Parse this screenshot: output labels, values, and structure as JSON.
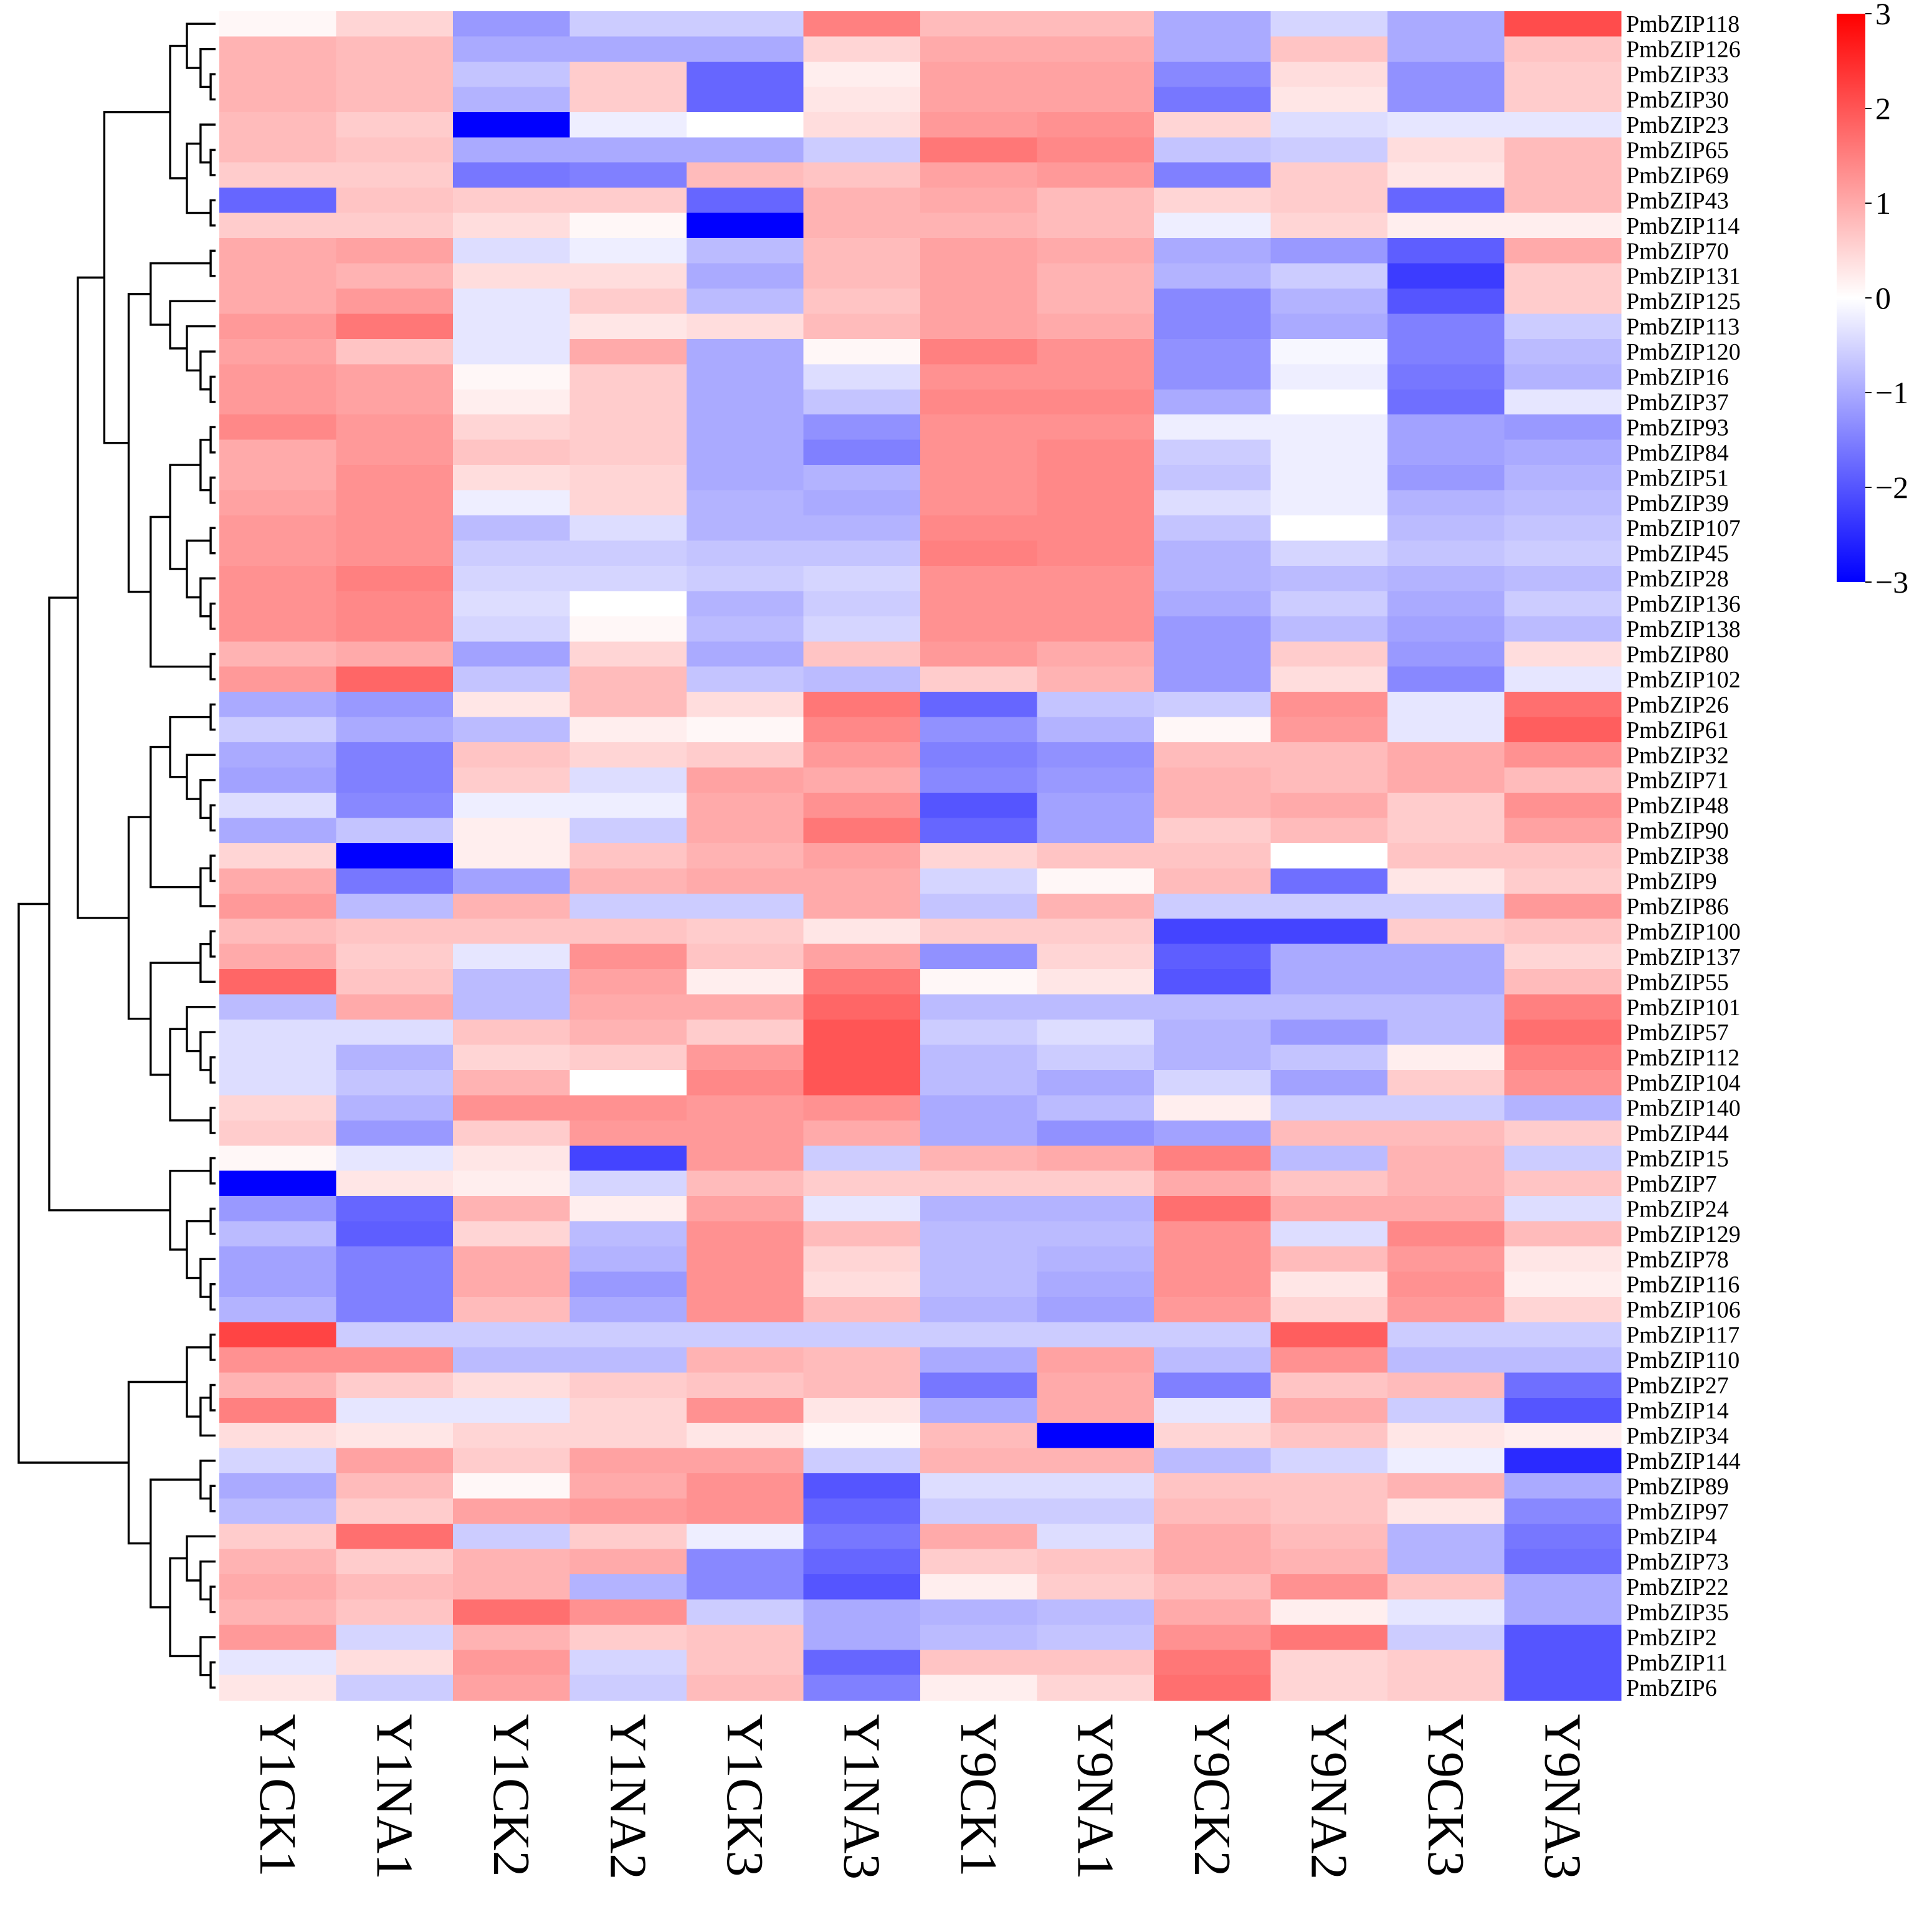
{
  "chart_data": {
    "type": "heatmap",
    "title": "",
    "columns": [
      "Y1CK1",
      "Y1NA1",
      "Y1CK2",
      "Y1NA2",
      "Y1CK3",
      "Y1NA3",
      "Y9CK1",
      "Y9NA1",
      "Y9CK2",
      "Y9NA2",
      "Y9CK3",
      "Y9NA3"
    ],
    "rows": [
      "PmbZIP118",
      "PmbZIP126",
      "PmbZIP33",
      "PmbZIP30",
      "PmbZIP23",
      "PmbZIP65",
      "PmbZIP69",
      "PmbZIP43",
      "PmbZIP114",
      "PmbZIP70",
      "PmbZIP131",
      "PmbZIP125",
      "PmbZIP113",
      "PmbZIP120",
      "PmbZIP16",
      "PmbZIP37",
      "PmbZIP93",
      "PmbZIP84",
      "PmbZIP51",
      "PmbZIP39",
      "PmbZIP107",
      "PmbZIP45",
      "PmbZIP28",
      "PmbZIP136",
      "PmbZIP138",
      "PmbZIP80",
      "PmbZIP102",
      "PmbZIP26",
      "PmbZIP61",
      "PmbZIP32",
      "PmbZIP71",
      "PmbZIP48",
      "PmbZIP90",
      "PmbZIP38",
      "PmbZIP9",
      "PmbZIP86",
      "PmbZIP100",
      "PmbZIP137",
      "PmbZIP55",
      "PmbZIP101",
      "PmbZIP57",
      "PmbZIP112",
      "PmbZIP104",
      "PmbZIP140",
      "PmbZIP44",
      "PmbZIP15",
      "PmbZIP7",
      "PmbZIP24",
      "PmbZIP129",
      "PmbZIP78",
      "PmbZIP116",
      "PmbZIP106",
      "PmbZIP117",
      "PmbZIP110",
      "PmbZIP27",
      "PmbZIP14",
      "PmbZIP34",
      "PmbZIP144",
      "PmbZIP89",
      "PmbZIP97",
      "PmbZIP4",
      "PmbZIP73",
      "PmbZIP22",
      "PmbZIP35",
      "PmbZIP2",
      "PmbZIP11",
      "PmbZIP6"
    ],
    "values": [
      [
        0.1,
        0.5,
        -1.2,
        -0.6,
        -0.6,
        1.5,
        0.8,
        0.8,
        -1.0,
        -0.5,
        -1.0,
        2.1
      ],
      [
        0.9,
        0.8,
        -1.0,
        -1.0,
        -1.0,
        0.5,
        1.0,
        1.0,
        -1.0,
        0.7,
        -1.0,
        0.7
      ],
      [
        0.9,
        0.8,
        -0.7,
        0.6,
        -1.8,
        0.2,
        1.1,
        1.1,
        -1.4,
        0.4,
        -1.3,
        0.6
      ],
      [
        0.9,
        0.8,
        -0.9,
        0.6,
        -1.8,
        0.3,
        1.1,
        1.1,
        -1.6,
        0.3,
        -1.3,
        0.6
      ],
      [
        0.8,
        0.6,
        -3.0,
        -0.2,
        0.0,
        0.4,
        1.2,
        1.3,
        0.5,
        -0.4,
        -0.3,
        -0.3
      ],
      [
        0.8,
        0.7,
        -1.0,
        -1.0,
        -1.0,
        -0.6,
        1.6,
        1.4,
        -0.7,
        -0.6,
        0.4,
        0.8
      ],
      [
        0.6,
        0.6,
        -1.6,
        -1.5,
        0.8,
        0.7,
        1.1,
        1.2,
        -1.5,
        0.6,
        0.3,
        0.8
      ],
      [
        -1.8,
        0.7,
        0.6,
        0.6,
        -1.8,
        0.9,
        1.0,
        0.8,
        0.5,
        0.6,
        -1.8,
        0.8
      ],
      [
        0.6,
        0.6,
        0.4,
        0.1,
        -3.0,
        0.9,
        0.9,
        0.8,
        -0.2,
        0.5,
        0.2,
        0.2
      ],
      [
        1.0,
        1.1,
        -0.4,
        -0.2,
        -0.8,
        0.8,
        1.1,
        1.0,
        -1.0,
        -1.2,
        -1.9,
        1.0
      ],
      [
        1.0,
        0.9,
        0.4,
        0.4,
        -1.0,
        0.8,
        1.1,
        0.9,
        -0.9,
        -0.6,
        -2.3,
        0.6
      ],
      [
        1.0,
        1.2,
        -0.3,
        0.6,
        -0.8,
        0.7,
        1.1,
        0.9,
        -1.4,
        -0.9,
        -2.0,
        0.6
      ],
      [
        1.2,
        1.6,
        -0.3,
        0.3,
        0.4,
        0.8,
        1.1,
        1.0,
        -1.4,
        -1.0,
        -1.5,
        -0.6
      ],
      [
        1.1,
        0.7,
        -0.3,
        1.0,
        -1.0,
        0.1,
        1.5,
        1.3,
        -1.3,
        -0.1,
        -1.5,
        -0.8
      ],
      [
        1.2,
        1.1,
        0.1,
        0.6,
        -1.0,
        -0.4,
        1.3,
        1.3,
        -1.3,
        -0.2,
        -1.6,
        -0.9
      ],
      [
        1.2,
        1.1,
        0.2,
        0.6,
        -1.0,
        -0.7,
        1.4,
        1.4,
        -1.0,
        0.0,
        -1.7,
        -0.3
      ],
      [
        1.4,
        1.2,
        0.5,
        0.6,
        -1.0,
        -1.3,
        1.3,
        1.3,
        -0.2,
        -0.2,
        -1.1,
        -1.2
      ],
      [
        1.0,
        1.2,
        0.7,
        0.6,
        -1.0,
        -1.5,
        1.3,
        1.4,
        -0.6,
        -0.2,
        -1.1,
        -1.0
      ],
      [
        1.0,
        1.3,
        0.4,
        0.5,
        -1.0,
        -0.9,
        1.3,
        1.4,
        -0.7,
        -0.2,
        -1.2,
        -0.9
      ],
      [
        1.1,
        1.3,
        -0.2,
        0.5,
        -0.9,
        -1.0,
        1.3,
        1.4,
        -0.4,
        -0.2,
        -0.9,
        -0.8
      ],
      [
        1.2,
        1.3,
        -0.8,
        -0.4,
        -0.9,
        -0.9,
        1.4,
        1.4,
        -0.7,
        0.0,
        -0.8,
        -0.7
      ],
      [
        1.2,
        1.3,
        -0.6,
        -0.6,
        -0.7,
        -0.7,
        1.5,
        1.4,
        -0.9,
        -0.5,
        -0.7,
        -0.6
      ],
      [
        1.3,
        1.5,
        -0.5,
        -0.5,
        -0.6,
        -0.5,
        1.3,
        1.3,
        -0.9,
        -0.8,
        -0.9,
        -0.8
      ],
      [
        1.3,
        1.4,
        -0.4,
        0.0,
        -0.9,
        -0.6,
        1.3,
        1.3,
        -1.0,
        -0.6,
        -1.0,
        -0.6
      ],
      [
        1.3,
        1.4,
        -0.5,
        0.1,
        -0.8,
        -0.5,
        1.3,
        1.3,
        -1.2,
        -0.8,
        -1.1,
        -0.8
      ],
      [
        0.9,
        1.0,
        -1.1,
        0.5,
        -1.0,
        0.7,
        1.2,
        1.0,
        -1.2,
        0.6,
        -1.2,
        0.4
      ],
      [
        1.2,
        1.8,
        -0.7,
        0.8,
        -0.7,
        -0.8,
        0.6,
        0.9,
        -1.2,
        0.4,
        -1.4,
        -0.3
      ],
      [
        -1.0,
        -1.2,
        0.3,
        0.8,
        0.4,
        1.6,
        -1.8,
        -0.7,
        -0.6,
        1.3,
        -0.3,
        1.7
      ],
      [
        -0.6,
        -1.0,
        -0.8,
        0.2,
        0.1,
        1.4,
        -1.3,
        -0.9,
        0.1,
        1.2,
        -0.3,
        1.9
      ],
      [
        -1.0,
        -1.5,
        0.7,
        0.5,
        0.6,
        1.2,
        -1.5,
        -1.3,
        0.8,
        0.8,
        1.0,
        1.3
      ],
      [
        -1.1,
        -1.5,
        0.6,
        -0.4,
        1.1,
        1.0,
        -1.4,
        -1.2,
        0.9,
        0.8,
        1.0,
        0.8
      ],
      [
        -0.4,
        -1.4,
        -0.2,
        -0.2,
        1.0,
        1.3,
        -2.0,
        -1.1,
        0.9,
        1.0,
        0.6,
        1.3
      ],
      [
        -1.0,
        -0.7,
        0.2,
        -0.6,
        1.0,
        1.6,
        -1.8,
        -1.1,
        0.6,
        0.8,
        0.6,
        1.1
      ],
      [
        0.5,
        -3.0,
        0.2,
        0.7,
        0.9,
        1.1,
        0.5,
        0.7,
        0.7,
        0.0,
        0.7,
        0.7
      ],
      [
        1.0,
        -1.6,
        -1.1,
        0.9,
        1.0,
        1.0,
        -0.5,
        0.1,
        0.8,
        -1.7,
        0.3,
        0.6
      ],
      [
        1.2,
        -0.8,
        0.9,
        -0.6,
        -0.6,
        1.0,
        -0.7,
        0.9,
        -0.6,
        -0.6,
        -0.6,
        1.2
      ],
      [
        0.8,
        0.7,
        0.7,
        0.7,
        0.6,
        0.3,
        0.6,
        0.6,
        -2.2,
        -2.2,
        0.6,
        0.7
      ],
      [
        1.0,
        0.6,
        -0.3,
        1.3,
        0.7,
        1.1,
        -1.3,
        0.5,
        -1.9,
        -1.0,
        -1.0,
        0.5
      ],
      [
        1.8,
        0.7,
        -0.8,
        1.1,
        0.2,
        1.6,
        0.1,
        0.3,
        -2.0,
        -1.0,
        -1.0,
        0.8
      ],
      [
        -0.8,
        1.0,
        -0.8,
        1.0,
        1.0,
        1.8,
        -0.8,
        -0.8,
        -0.8,
        -0.8,
        -0.8,
        1.5
      ],
      [
        -0.4,
        -0.4,
        0.7,
        0.9,
        0.6,
        2.0,
        -0.6,
        -0.4,
        -0.9,
        -1.2,
        -0.8,
        1.7
      ],
      [
        -0.4,
        -0.9,
        0.5,
        0.6,
        1.2,
        2.0,
        -0.8,
        -0.6,
        -0.9,
        -0.7,
        0.2,
        1.5
      ],
      [
        -0.4,
        -0.7,
        0.9,
        0.0,
        1.4,
        2.0,
        -0.8,
        -1.0,
        -0.5,
        -1.1,
        0.6,
        1.3
      ],
      [
        0.5,
        -0.9,
        1.3,
        1.3,
        1.2,
        1.3,
        -1.0,
        -0.8,
        0.2,
        -0.6,
        -0.6,
        -0.9
      ],
      [
        0.6,
        -1.2,
        0.6,
        1.2,
        1.2,
        1.0,
        -1.0,
        -1.3,
        -1.1,
        0.8,
        0.8,
        0.6
      ],
      [
        0.1,
        -0.3,
        0.3,
        -2.2,
        1.2,
        -0.6,
        0.9,
        1.0,
        1.5,
        -0.8,
        0.9,
        -0.6
      ],
      [
        -3.0,
        0.3,
        0.2,
        -0.5,
        0.8,
        0.6,
        0.6,
        0.6,
        1.0,
        0.7,
        0.9,
        0.7
      ],
      [
        -1.2,
        -1.8,
        0.9,
        0.2,
        1.1,
        -0.3,
        -0.9,
        -0.9,
        1.7,
        1.0,
        1.0,
        -0.4
      ],
      [
        -0.8,
        -1.9,
        0.5,
        -0.8,
        1.3,
        0.8,
        -0.8,
        -0.8,
        1.3,
        -0.4,
        1.4,
        0.8
      ],
      [
        -1.1,
        -1.5,
        1.0,
        -0.9,
        1.3,
        0.5,
        -0.8,
        -0.9,
        1.3,
        0.8,
        1.2,
        0.3
      ],
      [
        -1.1,
        -1.5,
        1.0,
        -1.2,
        1.3,
        0.4,
        -0.8,
        -1.0,
        1.3,
        0.3,
        1.3,
        0.2
      ],
      [
        -0.9,
        -1.5,
        0.8,
        -1.0,
        1.3,
        0.8,
        -0.9,
        -1.1,
        1.2,
        0.5,
        1.2,
        0.5
      ],
      [
        2.2,
        -0.6,
        -0.6,
        -0.6,
        -0.6,
        -0.6,
        -0.6,
        -0.6,
        -0.6,
        1.9,
        -0.6,
        -0.6
      ],
      [
        1.3,
        1.3,
        -0.8,
        -0.8,
        0.9,
        0.8,
        -1.0,
        1.1,
        -0.8,
        1.3,
        -0.8,
        -0.8
      ],
      [
        0.9,
        0.6,
        0.4,
        0.6,
        0.7,
        0.8,
        -1.6,
        1.0,
        -1.5,
        0.7,
        0.8,
        -1.7
      ],
      [
        1.5,
        -0.3,
        -0.3,
        0.5,
        1.3,
        0.3,
        -1.0,
        1.0,
        -0.3,
        1.0,
        -0.6,
        -2.0
      ],
      [
        0.4,
        0.3,
        0.5,
        0.5,
        0.3,
        0.1,
        0.8,
        -3.0,
        0.5,
        0.7,
        0.3,
        0.2
      ],
      [
        -0.5,
        1.1,
        0.6,
        1.1,
        1.1,
        -0.6,
        0.9,
        0.9,
        -0.8,
        -0.5,
        -0.2,
        -2.5
      ],
      [
        -1.0,
        0.8,
        0.1,
        1.0,
        1.3,
        -2.0,
        -0.4,
        -0.4,
        0.7,
        0.7,
        0.9,
        -1.0
      ],
      [
        -0.8,
        0.6,
        1.1,
        1.2,
        1.3,
        -1.8,
        -0.6,
        -0.6,
        0.8,
        0.7,
        0.3,
        -1.4
      ],
      [
        0.6,
        1.7,
        -0.6,
        0.6,
        -0.2,
        -1.6,
        1.0,
        -0.4,
        1.0,
        0.8,
        -0.9,
        -1.6
      ],
      [
        0.9,
        0.6,
        0.9,
        1.0,
        -1.4,
        -1.8,
        0.6,
        0.7,
        1.0,
        0.9,
        -0.9,
        -1.7
      ],
      [
        1.0,
        0.8,
        0.9,
        -0.9,
        -1.4,
        -2.0,
        0.2,
        0.6,
        0.8,
        1.3,
        0.7,
        -1.0
      ],
      [
        0.9,
        0.7,
        1.7,
        1.3,
        -0.6,
        -1.0,
        -0.9,
        -0.8,
        1.0,
        0.2,
        -0.3,
        -1.0
      ],
      [
        1.2,
        -0.5,
        0.9,
        0.6,
        0.7,
        -1.0,
        -0.8,
        -0.7,
        1.3,
        1.6,
        -0.6,
        -2.0
      ],
      [
        -0.3,
        0.4,
        1.2,
        -0.5,
        0.7,
        -1.8,
        0.7,
        0.7,
        1.6,
        0.5,
        0.6,
        -2.0
      ],
      [
        0.3,
        -0.6,
        1.1,
        -0.6,
        0.8,
        -1.5,
        0.2,
        0.5,
        1.7,
        0.5,
        0.6,
        -2.0
      ]
    ],
    "colorbar": {
      "min": -3,
      "max": 3,
      "ticks": [
        3,
        2,
        1,
        0,
        -1,
        -2,
        -3
      ],
      "tick_labels": [
        "3",
        "2",
        "1",
        "0",
        "−1",
        "−2",
        "−3"
      ],
      "colors": [
        "#0000ff",
        "#ffffff",
        "#ff0000"
      ]
    },
    "row_dendrogram": true
  }
}
